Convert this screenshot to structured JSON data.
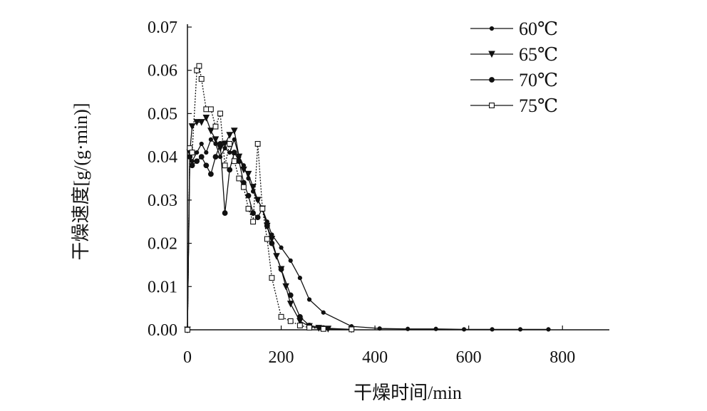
{
  "chart_data": {
    "type": "line",
    "xlabel": "干燥时间/min",
    "ylabel": "干燥速度[g/(g·min)]",
    "xlim": [
      0,
      900
    ],
    "ylim": [
      0,
      0.07
    ],
    "x_ticks": [
      "0",
      "200",
      "400",
      "600",
      "800"
    ],
    "y_ticks": [
      "0.00",
      "0.01",
      "0.02",
      "0.03",
      "0.04",
      "0.05",
      "0.06",
      "0.07"
    ],
    "grid": false,
    "legend_position": "top-right",
    "series": [
      {
        "name": "60℃",
        "marker": "filled-circle-small",
        "line_style": "solid",
        "x": [
          0,
          5,
          10,
          20,
          30,
          40,
          50,
          60,
          70,
          80,
          90,
          100,
          110,
          120,
          130,
          140,
          150,
          160,
          170,
          180,
          200,
          220,
          240,
          260,
          290,
          350,
          410,
          470,
          530,
          590,
          650,
          710,
          770
        ],
        "y": [
          0.0,
          0.04,
          0.039,
          0.041,
          0.043,
          0.041,
          0.044,
          0.043,
          0.04,
          0.042,
          0.041,
          0.044,
          0.04,
          0.038,
          0.035,
          0.032,
          0.03,
          0.028,
          0.025,
          0.022,
          0.019,
          0.016,
          0.012,
          0.007,
          0.004,
          0.0008,
          0.0003,
          0.0002,
          0.0002,
          0.0001,
          0.0001,
          0.0001,
          0.0001
        ]
      },
      {
        "name": "65℃",
        "marker": "open-triangle-down",
        "line_style": "solid",
        "x": [
          0,
          5,
          10,
          20,
          30,
          40,
          50,
          60,
          70,
          80,
          90,
          100,
          110,
          120,
          130,
          140,
          150,
          160,
          170,
          180,
          190,
          200,
          210,
          220,
          240,
          260,
          280,
          300,
          350
        ],
        "y": [
          0.0,
          0.041,
          0.047,
          0.048,
          0.048,
          0.049,
          0.046,
          0.044,
          0.042,
          0.043,
          0.045,
          0.046,
          0.04,
          0.037,
          0.036,
          0.033,
          0.03,
          0.028,
          0.024,
          0.021,
          0.017,
          0.014,
          0.01,
          0.006,
          0.002,
          0.0008,
          0.0004,
          0.0002,
          0.0001
        ]
      },
      {
        "name": "70℃",
        "marker": "filled-circle",
        "line_style": "solid",
        "x": [
          0,
          5,
          10,
          20,
          30,
          40,
          50,
          60,
          70,
          80,
          90,
          100,
          110,
          120,
          130,
          140,
          150,
          160,
          170,
          180,
          200,
          220,
          240,
          260,
          290,
          350
        ],
        "y": [
          0.0,
          0.04,
          0.038,
          0.039,
          0.04,
          0.038,
          0.036,
          0.04,
          0.043,
          0.027,
          0.037,
          0.041,
          0.039,
          0.034,
          0.031,
          0.027,
          0.026,
          0.028,
          0.024,
          0.02,
          0.014,
          0.008,
          0.003,
          0.001,
          0.0004,
          0.0001
        ]
      },
      {
        "name": "75℃",
        "marker": "open-square",
        "line_style": "dotted",
        "x": [
          0,
          5,
          10,
          20,
          25,
          30,
          40,
          50,
          60,
          70,
          80,
          90,
          100,
          110,
          120,
          130,
          140,
          150,
          160,
          170,
          180,
          200,
          220,
          240,
          260,
          290,
          350
        ],
        "y": [
          0.0,
          0.042,
          0.041,
          0.06,
          0.061,
          0.058,
          0.051,
          0.051,
          0.047,
          0.05,
          0.038,
          0.043,
          0.039,
          0.035,
          0.033,
          0.028,
          0.025,
          0.043,
          0.028,
          0.021,
          0.012,
          0.003,
          0.002,
          0.001,
          0.0005,
          0.0002,
          0.0001
        ]
      }
    ]
  }
}
